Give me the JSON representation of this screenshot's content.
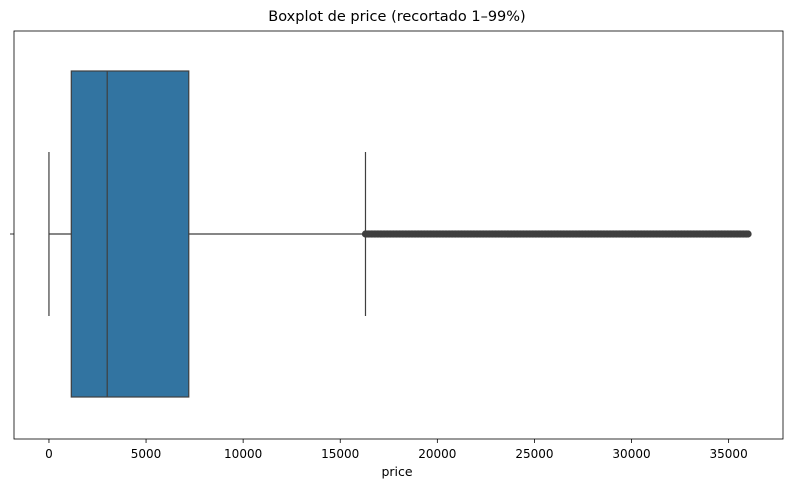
{
  "chart_data": {
    "type": "boxplot",
    "title": "Boxplot de price (recortado 1–99%)",
    "xlabel": "price",
    "ylabel": "",
    "xlim": [
      -1800,
      37800
    ],
    "xticks": [
      0,
      5000,
      10000,
      15000,
      20000,
      25000,
      30000,
      35000
    ],
    "xtick_labels": [
      "0",
      "5000",
      "10000",
      "15000",
      "20000",
      "25000",
      "30000",
      "35000"
    ],
    "orientation": "horizontal",
    "grid": false,
    "box": {
      "whisker_low": 0,
      "q1": 1150,
      "median": 3000,
      "q3": 7200,
      "whisker_high": 16300
    },
    "outliers_range": [
      16300,
      36000
    ],
    "colors": {
      "box_fill": "#3274a1",
      "lines": "#3f3f3f",
      "outliers": "#3f3f3f"
    }
  }
}
